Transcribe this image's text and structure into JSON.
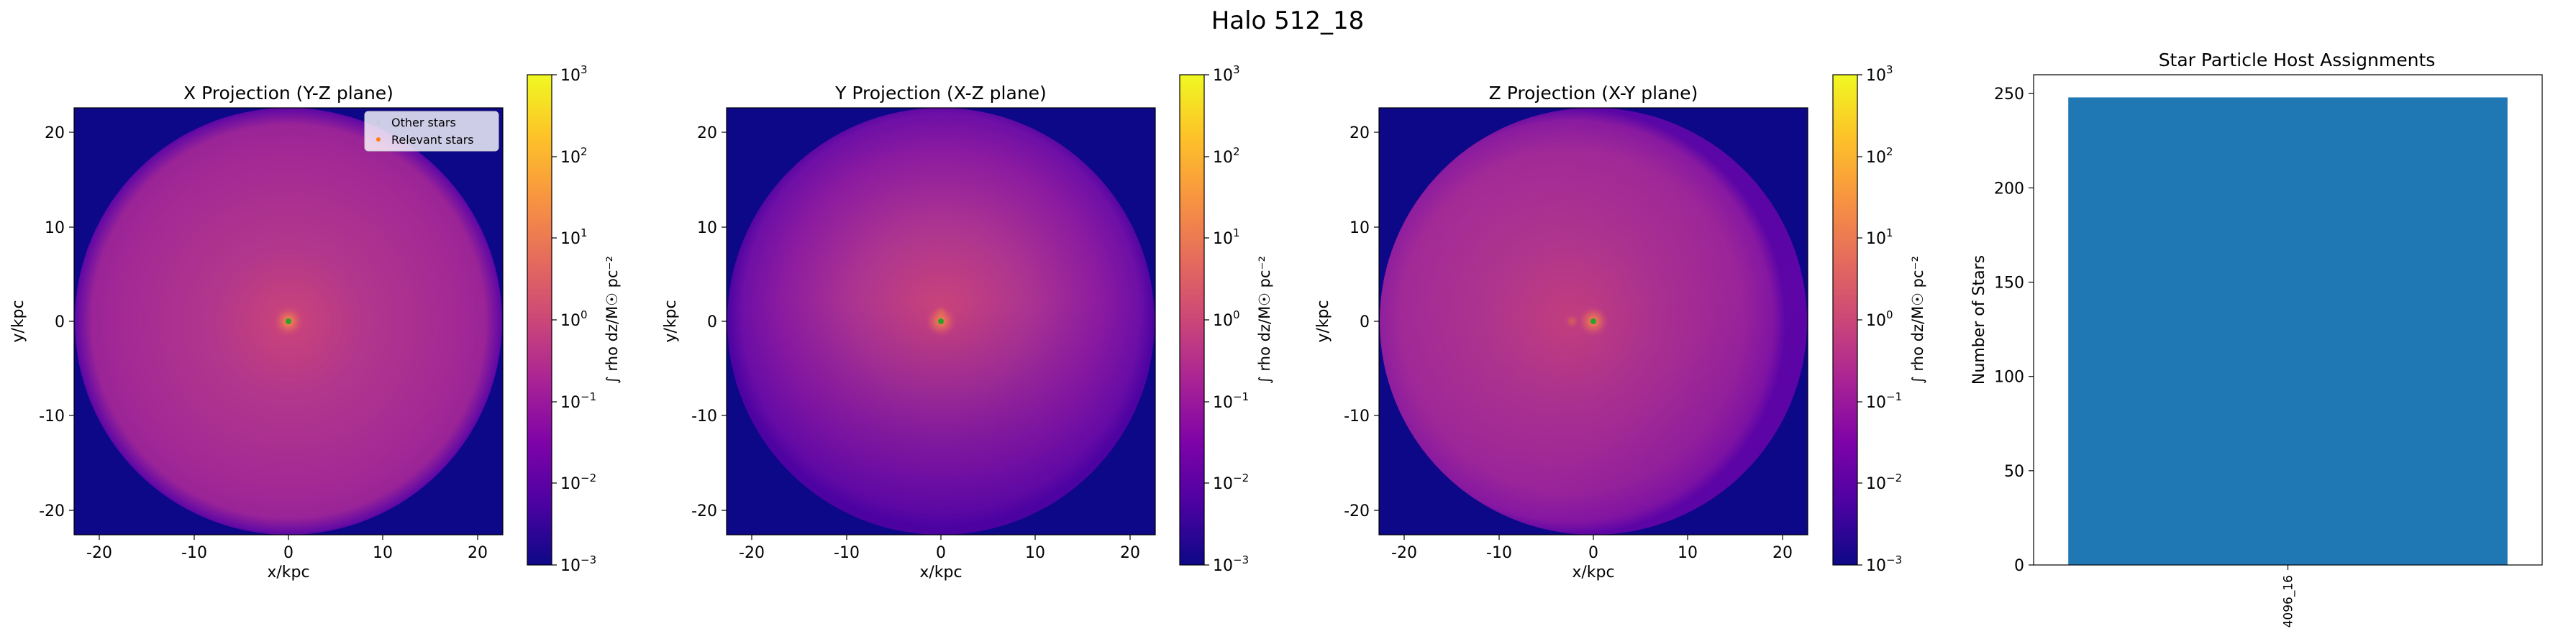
{
  "figure": {
    "suptitle": "Halo 512_18"
  },
  "chart_data": [
    {
      "type": "heatmap",
      "title": "X Projection (Y-Z plane)",
      "xlabel": "x/kpc",
      "ylabel": "y/kpc",
      "xlim": [
        -22.7,
        22.7
      ],
      "ylim": [
        -22.7,
        22.7
      ],
      "xticks": [
        -20,
        -10,
        0,
        10,
        20
      ],
      "yticks": [
        -20,
        -10,
        0,
        10,
        20
      ],
      "colorbar": {
        "label": "∫ rho dz/M☉ pc⁻²",
        "scale": "log",
        "range": [
          0.001,
          1000
        ],
        "ticks": [
          {
            "base": "10",
            "exp": "3"
          },
          {
            "base": "10",
            "exp": "2"
          },
          {
            "base": "10",
            "exp": "1"
          },
          {
            "base": "10",
            "exp": "0"
          },
          {
            "base": "10",
            "exp": "−1"
          },
          {
            "base": "10",
            "exp": "−2"
          },
          {
            "base": "10",
            "exp": "−3"
          }
        ]
      },
      "halo_radius_kpc": 22.7,
      "center_kpc": [
        0,
        0
      ],
      "legend": {
        "location": "upper right",
        "entries": [
          "Other stars",
          "Relevant stars"
        ]
      },
      "colors": {
        "other_stars": "#c9c9df",
        "relevant_stars": "#ff7f0e",
        "halo_center": "#2ca02c"
      }
    },
    {
      "type": "heatmap",
      "title": "Y Projection (X-Z plane)",
      "xlabel": "x/kpc",
      "ylabel": "y/kpc",
      "xlim": [
        -22.7,
        22.7
      ],
      "ylim": [
        -22.7,
        22.7
      ],
      "xticks": [
        -20,
        -10,
        0,
        10,
        20
      ],
      "yticks": [
        -20,
        -10,
        0,
        10,
        20
      ],
      "colorbar": {
        "label": "∫ rho dz/M☉ pc⁻²",
        "scale": "log",
        "range": [
          0.001,
          1000
        ],
        "ticks": [
          {
            "base": "10",
            "exp": "3"
          },
          {
            "base": "10",
            "exp": "2"
          },
          {
            "base": "10",
            "exp": "1"
          },
          {
            "base": "10",
            "exp": "0"
          },
          {
            "base": "10",
            "exp": "−1"
          },
          {
            "base": "10",
            "exp": "−2"
          },
          {
            "base": "10",
            "exp": "−3"
          }
        ]
      },
      "halo_radius_kpc": 22.7,
      "center_kpc": [
        0,
        0
      ]
    },
    {
      "type": "heatmap",
      "title": "Z Projection (X-Y plane)",
      "xlabel": "x/kpc",
      "ylabel": "y/kpc",
      "xlim": [
        -22.7,
        22.7
      ],
      "ylim": [
        -22.7,
        22.7
      ],
      "xticks": [
        -20,
        -10,
        0,
        10,
        20
      ],
      "yticks": [
        -20,
        -10,
        0,
        10,
        20
      ],
      "colorbar": {
        "label": "∫ rho dz/M☉ pc⁻²",
        "scale": "log",
        "range": [
          0.001,
          1000
        ],
        "ticks": [
          {
            "base": "10",
            "exp": "3"
          },
          {
            "base": "10",
            "exp": "2"
          },
          {
            "base": "10",
            "exp": "1"
          },
          {
            "base": "10",
            "exp": "0"
          },
          {
            "base": "10",
            "exp": "−1"
          },
          {
            "base": "10",
            "exp": "−2"
          },
          {
            "base": "10",
            "exp": "−3"
          }
        ]
      },
      "halo_radius_kpc": 22.7,
      "center_kpc": [
        0,
        0
      ]
    },
    {
      "type": "bar",
      "title": "Star Particle Host Assignments",
      "categories": [
        "4096_16"
      ],
      "values": [
        248
      ],
      "xlabel": "",
      "ylabel": "Number of Stars",
      "ylim": [
        0,
        260
      ],
      "yticks": [
        0,
        50,
        100,
        150,
        200,
        250
      ],
      "colors": {
        "bar": "#1f77b4"
      }
    }
  ]
}
